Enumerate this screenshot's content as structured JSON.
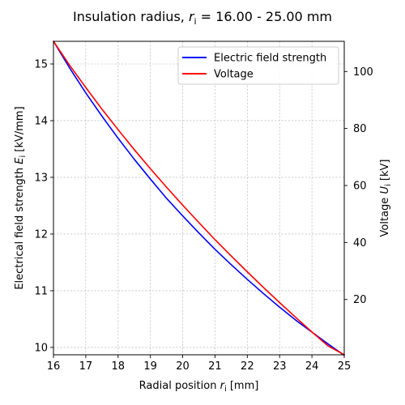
{
  "chart_data": {
    "type": "line",
    "title_prefix": "Insulation radius, ",
    "title_var": "r",
    "title_sub": "i",
    "title_suffix": " = 16.00 - 25.00 mm",
    "xlabel_prefix": "Radial position ",
    "xlabel_var": "r",
    "xlabel_sub": "i",
    "xlabel_suffix": " [mm]",
    "ylabel_prefix": "Electrical field strength ",
    "ylabel_var": "E",
    "ylabel_sub": "i",
    "ylabel_suffix": " [kV/mm]",
    "y2label_prefix": "Voltage ",
    "y2label_var": "U",
    "y2label_sub": "i",
    "y2label_suffix": " [kV]",
    "xlim": [
      16,
      25
    ],
    "ylim": [
      9.87,
      15.4
    ],
    "y2lim": [
      0.6,
      110.6
    ],
    "xticks": [
      16,
      17,
      18,
      19,
      20,
      21,
      22,
      23,
      24,
      25
    ],
    "yticks": [
      10,
      11,
      12,
      13,
      14,
      15
    ],
    "y2ticks": [
      20,
      40,
      60,
      80,
      100
    ],
    "grid": true,
    "legend_position": "top-right",
    "x": [
      16,
      16.5,
      17,
      17.5,
      18,
      18.5,
      19,
      19.5,
      20,
      20.5,
      21,
      21.5,
      22,
      22.5,
      23,
      23.5,
      24,
      24.5,
      25
    ],
    "series": [
      {
        "name": "Electric field strength",
        "axis": "left",
        "color": "#0000ff",
        "values": [
          15.4,
          14.93,
          14.49,
          14.08,
          13.69,
          13.32,
          12.97,
          12.63,
          12.32,
          12.02,
          11.73,
          11.46,
          11.2,
          10.95,
          10.71,
          10.48,
          10.27,
          10.06,
          9.86
        ]
      },
      {
        "name": "Voltage",
        "axis": "right",
        "color": "#ff0000",
        "values": [
          110.6,
          102.2,
          94.4,
          86.8,
          79.6,
          72.6,
          65.9,
          59.4,
          53.1,
          47.0,
          41.0,
          35.3,
          29.7,
          24.2,
          18.9,
          13.7,
          8.6,
          3.7,
          0.6
        ]
      }
    ]
  }
}
